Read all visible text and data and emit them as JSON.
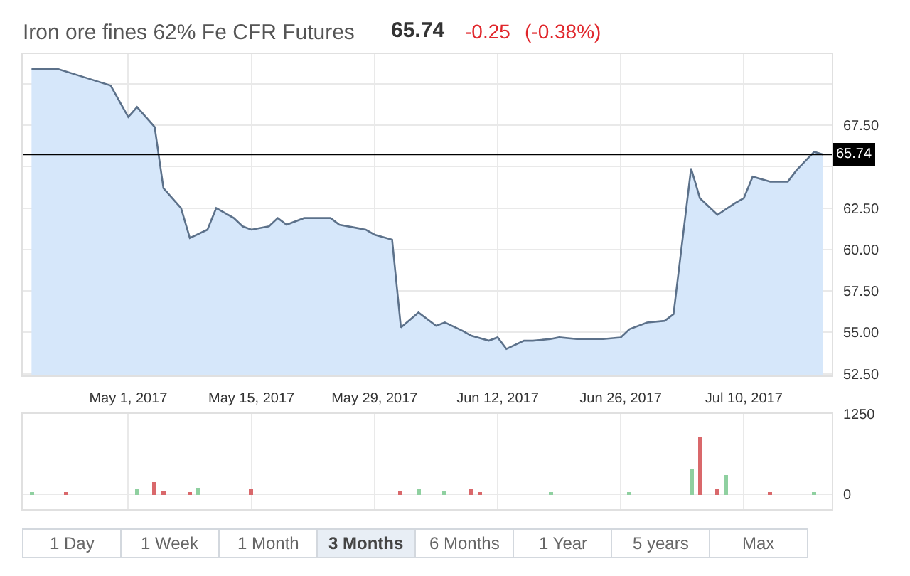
{
  "chart_data": [
    {
      "type": "area",
      "title": "Iron ore fines 62% Fe CFR Futures",
      "annotations": [
        "65.74",
        "-0.25",
        "(-0.38%)"
      ],
      "x": [
        "2017-04-20",
        "2017-04-23",
        "2017-04-26",
        "2017-04-29",
        "2017-05-01",
        "2017-05-02",
        "2017-05-04",
        "2017-05-05",
        "2017-05-07",
        "2017-05-08",
        "2017-05-10",
        "2017-05-11",
        "2017-05-13",
        "2017-05-14",
        "2017-05-15",
        "2017-05-17",
        "2017-05-18",
        "2017-05-19",
        "2017-05-21",
        "2017-05-22",
        "2017-05-24",
        "2017-05-25",
        "2017-05-27",
        "2017-05-28",
        "2017-05-29",
        "2017-05-31",
        "2017-06-01",
        "2017-06-03",
        "2017-06-05",
        "2017-06-06",
        "2017-06-08",
        "2017-06-09",
        "2017-06-11",
        "2017-06-12",
        "2017-06-13",
        "2017-06-15",
        "2017-06-16",
        "2017-06-18",
        "2017-06-19",
        "2017-06-21",
        "2017-06-22",
        "2017-06-24",
        "2017-06-26",
        "2017-06-27",
        "2017-06-29",
        "2017-07-01",
        "2017-07-02",
        "2017-07-04",
        "2017-07-05",
        "2017-07-07",
        "2017-07-09",
        "2017-07-10",
        "2017-07-11",
        "2017-07-13",
        "2017-07-15",
        "2017-07-16",
        "2017-07-18",
        "2017-07-19"
      ],
      "series": [
        {
          "color": "#d6e7fa",
          "values": [
            70.9,
            70.9,
            70.4,
            69.9,
            68.0,
            68.6,
            67.4,
            63.7,
            62.5,
            60.7,
            61.2,
            62.5,
            61.9,
            61.4,
            61.2,
            61.4,
            61.9,
            61.5,
            61.9,
            61.9,
            61.9,
            61.5,
            61.3,
            61.2,
            60.9,
            60.6,
            55.3,
            56.2,
            55.4,
            55.6,
            55.1,
            54.8,
            54.5,
            54.7,
            54.0,
            54.5,
            54.5,
            54.6,
            54.7,
            54.6,
            54.6,
            54.6,
            54.7,
            55.2,
            55.6,
            55.7,
            56.1,
            64.9,
            63.1,
            62.1,
            62.8,
            63.1,
            64.4,
            64.1,
            64.1,
            64.8,
            65.9,
            65.74
          ]
        }
      ],
      "xlim": [
        "2017-04-19",
        "2017-07-20"
      ],
      "xticks": [
        {
          "value": "2017-05-01",
          "label": "May 1, 2017"
        },
        {
          "value": "2017-05-15",
          "label": "May 15, 2017"
        },
        {
          "value": "2017-05-29",
          "label": "May 29, 2017"
        },
        {
          "value": "2017-06-12",
          "label": "Jun 12, 2017"
        },
        {
          "value": "2017-06-26",
          "label": "Jun 26, 2017"
        },
        {
          "value": "2017-07-10",
          "label": "Jul 10, 2017"
        }
      ],
      "ylim": [
        52.4,
        71.8
      ],
      "yticks": [
        {
          "value": 52.5,
          "label": "52.50"
        },
        {
          "value": 55,
          "label": "55.00"
        },
        {
          "value": 57.5,
          "label": "57.50"
        },
        {
          "value": 60,
          "label": "60.00"
        },
        {
          "value": 62.5,
          "label": "62.50"
        },
        {
          "value": 65,
          "label": null
        },
        {
          "value": 67.5,
          "label": "67.50"
        },
        {
          "value": 70,
          "label": null
        }
      ],
      "ref_lines": [
        {
          "axis": "y",
          "value": 65.74,
          "label": "65.74",
          "color": "#000000"
        }
      ],
      "grid": true
    },
    {
      "type": "bar",
      "x": [
        "2017-04-20",
        "2017-04-24",
        "2017-05-02",
        "2017-05-04",
        "2017-05-05",
        "2017-05-08",
        "2017-05-09",
        "2017-05-15",
        "2017-06-01",
        "2017-06-03",
        "2017-06-06",
        "2017-06-09",
        "2017-06-10",
        "2017-06-18",
        "2017-06-27",
        "2017-07-04",
        "2017-07-05",
        "2017-07-07",
        "2017-07-08",
        "2017-07-13",
        "2017-07-18"
      ],
      "values": [
        30,
        30,
        90,
        180,
        60,
        40,
        110,
        90,
        60,
        90,
        60,
        90,
        30,
        20,
        20,
        390,
        900,
        90,
        310,
        20,
        20
      ],
      "colors": [
        "#8fd0a0",
        "#d9686b",
        "#8fd0a0",
        "#d9686b",
        "#d9686b",
        "#d9686b",
        "#8fd0a0",
        "#d9686b",
        "#d9686b",
        "#8fd0a0",
        "#8fd0a0",
        "#d9686b",
        "#d9686b",
        "#8fd0a0",
        "#8fd0a0",
        "#8fd0a0",
        "#d9686b",
        "#d9686b",
        "#8fd0a0",
        "#d9686b",
        "#8fd0a0"
      ],
      "xlim": [
        "2017-04-19",
        "2017-07-20"
      ],
      "xticks": [
        "2017-05-01",
        "2017-05-15",
        "2017-05-29",
        "2017-06-12",
        "2017-06-26",
        "2017-07-10"
      ],
      "ylim": [
        -230,
        1250
      ],
      "yticks": [
        0,
        1250
      ],
      "grid": true,
      "tick_labels": "y"
    },
    {
      "type": "other",
      "categories": [
        "1 Day",
        "1 Week",
        "1 Month",
        "3 Months",
        "6 Months",
        "1 Year",
        "5 years",
        "Max"
      ],
      "colors": [
        "#ffffff",
        "#ffffff",
        "#ffffff",
        "#e8eef5",
        "#ffffff",
        "#ffffff",
        "#ffffff",
        "#ffffff"
      ]
    }
  ]
}
